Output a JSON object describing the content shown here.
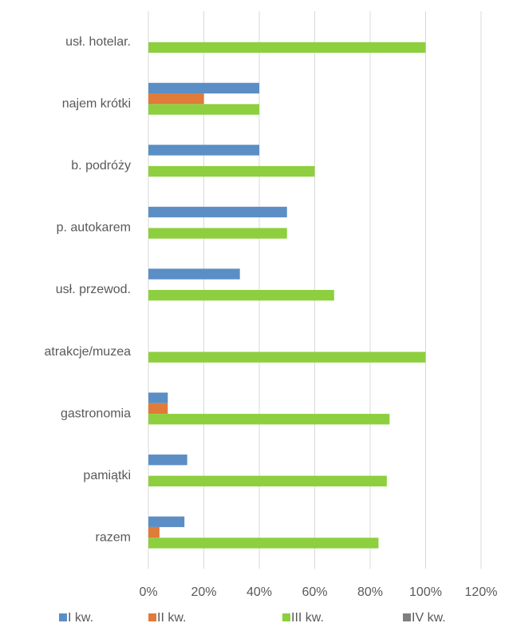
{
  "chart_data": {
    "type": "bar",
    "orientation": "horizontal",
    "categories": [
      "usł. hotelar.",
      "najem krótki",
      "b. podróży",
      "p. autokarem",
      "usł. przewod.",
      "atrakcje/muzea",
      "gastronomia",
      "pamiątki",
      "razem"
    ],
    "series": [
      {
        "name": "I kw.",
        "color": "#5b8ec4",
        "values": [
          0,
          40,
          40,
          50,
          33,
          0,
          7,
          14,
          13
        ]
      },
      {
        "name": "II kw.",
        "color": "#e07b39",
        "values": [
          0,
          20,
          0,
          0,
          0,
          0,
          7,
          0,
          4
        ]
      },
      {
        "name": "III kw.",
        "color": "#8dcf3f",
        "values": [
          100,
          40,
          60,
          50,
          67,
          100,
          87,
          86,
          83
        ]
      },
      {
        "name": "IV kw.",
        "color": "#7f7f7f",
        "values": [
          0,
          0,
          0,
          0,
          0,
          0,
          0,
          0,
          0
        ]
      }
    ],
    "xlim": [
      0,
      120
    ],
    "xticks": [
      {
        "value": 0,
        "label": "0%"
      },
      {
        "value": 20,
        "label": "20%"
      },
      {
        "value": 40,
        "label": "40%"
      },
      {
        "value": 60,
        "label": "60%"
      },
      {
        "value": 80,
        "label": "80%"
      },
      {
        "value": 100,
        "label": "100%"
      },
      {
        "value": 120,
        "label": "120%"
      }
    ],
    "grid": true,
    "legend": "bottom"
  }
}
